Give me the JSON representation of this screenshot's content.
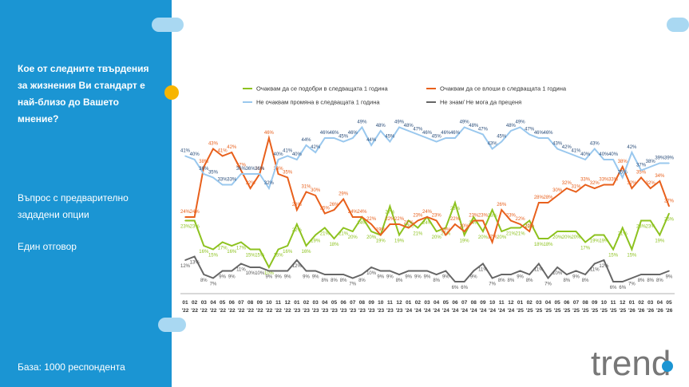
{
  "panel": {
    "title": "Кое от следните твърдения за жизнения Ви стандарт е най-близо до Вашето мнение?",
    "question": "Въпрос с предварително зададени опции",
    "answer": "Един отговор",
    "base": "База:  1000 респондента"
  },
  "logo": "trend",
  "chart_data": {
    "type": "line",
    "categories": [
      "01 '22",
      "02 '22",
      "03 '22",
      "04 '22",
      "05 '22",
      "06 '22",
      "07 '22",
      "08 '22",
      "09 '22",
      "10 '22",
      "11 '22",
      "12 '22",
      "01 '23",
      "02 '23",
      "03 '23",
      "04 '23",
      "05 '23",
      "06 '23",
      "07 '23",
      "08 '23",
      "09 '23",
      "10 '23",
      "11 '23",
      "12 '23",
      "01 '24",
      "02 '24",
      "03 '24",
      "04 '24",
      "05 '24",
      "06 '24",
      "07 '24",
      "08 '24",
      "09 '24",
      "10 '24",
      "11 '24",
      "12 '24",
      "01 '25",
      "02 '25",
      "03 '25",
      "04 '25",
      "05 '25",
      "06 '25",
      "07 '25",
      "08 '25",
      "09 '25",
      "10 '25",
      "11 '25",
      "12 '25",
      "01 '26",
      "02 '26",
      "03 '26",
      "04 '26",
      "05 '26"
    ],
    "series": [
      {
        "name": "Очаквам да се подобри в следващата 1 година",
        "color": "#8dc21f",
        "values": [
          23,
          23,
          16,
          15,
          17,
          16,
          17,
          15,
          15,
          10,
          15,
          16,
          22,
          16,
          19,
          21,
          18,
          21,
          20,
          24,
          20,
          19,
          27,
          19,
          23,
          21,
          24,
          20,
          21,
          28,
          19,
          24,
          20,
          26,
          20,
          21,
          21,
          23,
          18,
          18,
          20,
          20,
          20,
          17,
          19,
          19,
          15,
          21,
          15,
          23,
          23,
          19,
          25
        ],
        "value_labels": [
          "23%",
          "23%",
          "16%",
          "15%",
          "17%",
          "16%",
          "17%",
          "15%",
          "15%",
          "10%",
          "15%",
          "16%",
          "22%",
          "16%",
          "19%",
          "21%",
          "18%",
          "21%",
          "20%",
          "24%",
          "20%",
          "19%",
          "27%",
          "19%",
          "23%",
          "21%",
          "24%",
          "20%",
          "21%",
          "28%",
          "19%",
          "24%",
          "20%",
          "26%",
          "20%",
          "21%",
          "21%",
          "23%",
          "18%",
          "18%",
          "20%",
          "20%",
          "20%",
          "17%",
          "19%",
          "19%",
          "15%",
          "21%",
          "15%",
          "23%",
          "23%",
          "19%",
          "25%"
        ]
      },
      {
        "name": "Очаквам да се влоши в следващата 1 година",
        "color": "#e8601c",
        "values": [
          24,
          24,
          38,
          43,
          41,
          42,
          37,
          32,
          36,
          46,
          36,
          35,
          26,
          31,
          30,
          25,
          26,
          29,
          24,
          24,
          22,
          19,
          22,
          22,
          21,
          23,
          24,
          23,
          19,
          22,
          20,
          23,
          23,
          17,
          26,
          23,
          22,
          20,
          28,
          28,
          30,
          32,
          31,
          33,
          32,
          33,
          33,
          38,
          32,
          35,
          32,
          34,
          27
        ],
        "value_labels": [
          "24%",
          "24%",
          "38%",
          "43%",
          "41%",
          "42%",
          "37%",
          "32%",
          "36%",
          "46%",
          "36%",
          "35%",
          "26%",
          "31%",
          "30%",
          "25%",
          "26%",
          "29%",
          "24%",
          "24%",
          "22%",
          "19%",
          "22%",
          "22%",
          "21%",
          "23%",
          "24%",
          "23%",
          "19%",
          "22%",
          "20%",
          "23%",
          "23%",
          "17%",
          "26%",
          "23%",
          "22%",
          "20%",
          "28%",
          "28%",
          "30%",
          "32%",
          "31%",
          "33%",
          "32%",
          "33%",
          "33%",
          "38%",
          "32%",
          "35%",
          "32%",
          "34%",
          "27%"
        ]
      },
      {
        "name": "Не очаквам промяна в следващата 1 година",
        "color": "#9ac8ee",
        "values": [
          41,
          40,
          36,
          35,
          33,
          33,
          36,
          36,
          36,
          32,
          40,
          41,
          40,
          44,
          42,
          46,
          46,
          45,
          46,
          49,
          44,
          48,
          45,
          49,
          48,
          47,
          46,
          45,
          46,
          46,
          49,
          48,
          47,
          43,
          45,
          48,
          49,
          47,
          46,
          46,
          43,
          42,
          41,
          40,
          43,
          40,
          40,
          35,
          42,
          37,
          38,
          39,
          39
        ],
        "value_labels": [
          "41%",
          "40%",
          "36%",
          "35%",
          "33%",
          "33%",
          "36%",
          "36%",
          "36%",
          "32%",
          "40%",
          "41%",
          "40%",
          "44%",
          "42%",
          "46%",
          "46%",
          "45%",
          "46%",
          "49%",
          "44%",
          "48%",
          "45%",
          "49%",
          "48%",
          "47%",
          "46%",
          "45%",
          "46%",
          "46%",
          "49%",
          "48%",
          "47%",
          "43%",
          "45%",
          "48%",
          "49%",
          "47%",
          "46%",
          "46%",
          "43%",
          "42%",
          "41%",
          "40%",
          "43%",
          "40%",
          "40%",
          "35%",
          "42%",
          "37%",
          "38%",
          "39%",
          "39%"
        ]
      },
      {
        "name": "Не знам/ Не мога да преценя",
        "color": "#666666",
        "values": [
          12,
          13,
          8,
          7,
          9,
          9,
          11,
          10,
          10,
          9,
          9,
          9,
          12,
          9,
          9,
          8,
          8,
          8,
          7,
          8,
          10,
          9,
          9,
          8,
          9,
          9,
          9,
          8,
          9,
          6,
          6,
          9,
          11,
          7,
          8,
          8,
          9,
          8,
          11,
          7,
          10,
          8,
          9,
          8,
          11,
          12,
          6,
          6,
          7,
          8,
          8,
          8,
          9
        ],
        "value_labels": [
          "12%",
          "13%",
          "8%",
          "7%",
          "9%",
          "9%",
          "11%",
          "10%",
          "10%",
          "9%",
          "9%",
          "9%",
          "12%",
          "9%",
          "9%",
          "8%",
          "8%",
          "8%",
          "7%",
          "8%",
          "10%",
          "9%",
          "9%",
          "8%",
          "9%",
          "9%",
          "9%",
          "8%",
          "9%",
          "6%",
          "6%",
          "9%",
          "11%",
          "7%",
          "8%",
          "8%",
          "9%",
          "8%",
          "11%",
          "7%",
          "10%",
          "8%",
          "9%",
          "8%",
          "11%",
          "12%",
          "6%",
          "6%",
          "7%",
          "8%",
          "8%",
          "8%",
          "9%"
        ]
      }
    ]
  }
}
